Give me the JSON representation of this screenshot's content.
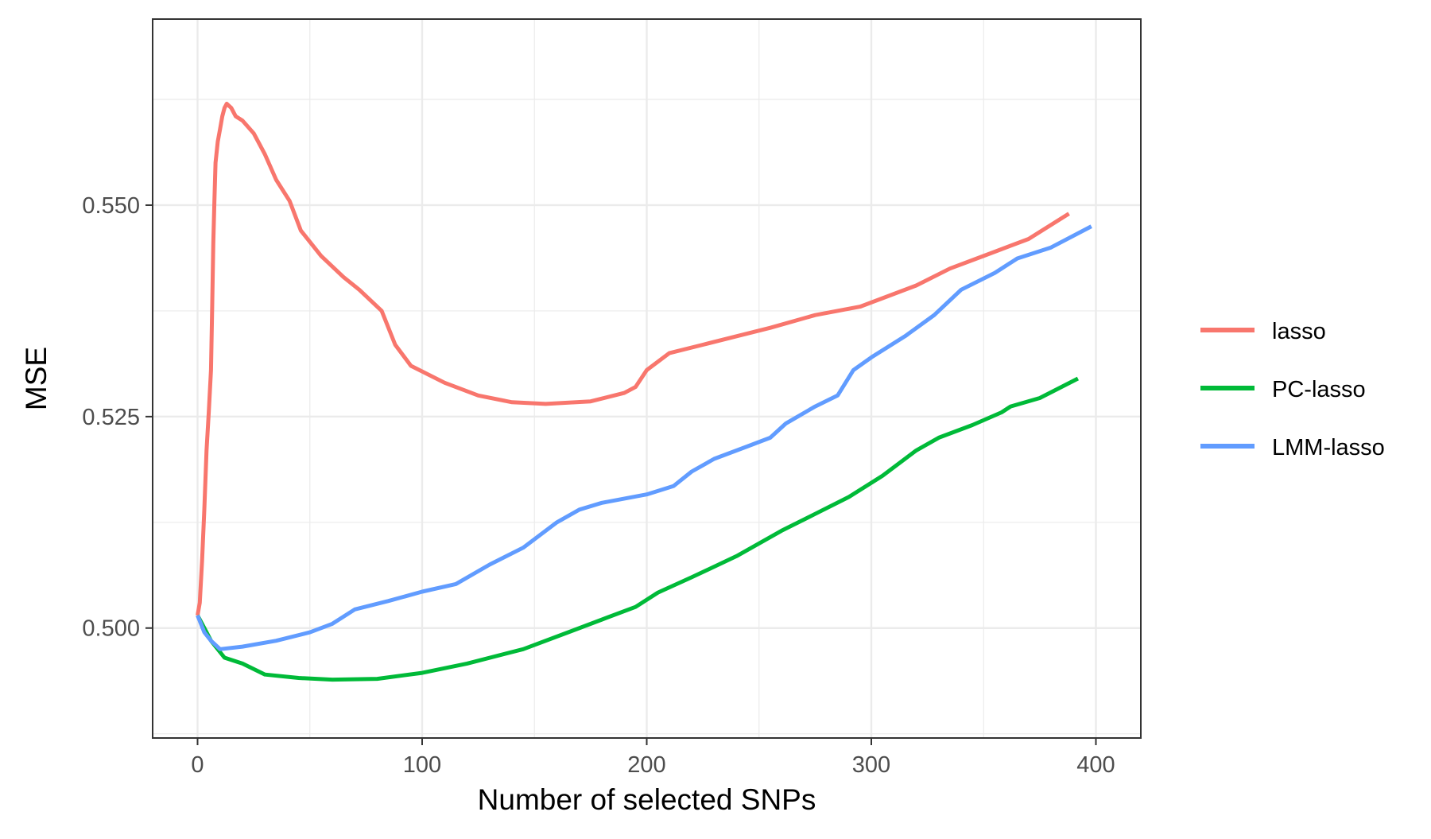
{
  "chart_data": {
    "type": "line",
    "title": "",
    "xlabel": "Number of selected SNPs",
    "ylabel": "MSE",
    "xlim": [
      -20,
      420
    ],
    "ylim": [
      0.487,
      0.572
    ],
    "x_ticks": [
      {
        "value": 0,
        "label": "0"
      },
      {
        "value": 100,
        "label": "100"
      },
      {
        "value": 200,
        "label": "200"
      },
      {
        "value": 300,
        "label": "300"
      },
      {
        "value": 400,
        "label": "400"
      }
    ],
    "y_ticks": [
      {
        "value": 0.5,
        "label": "0.500"
      },
      {
        "value": 0.525,
        "label": "0.525"
      },
      {
        "value": 0.55,
        "label": "0.550"
      }
    ],
    "grid": true,
    "legend_position": "right",
    "series": [
      {
        "name": "lasso",
        "color": "#F8766D",
        "points": [
          [
            0,
            0.5015
          ],
          [
            1,
            0.503
          ],
          [
            2,
            0.508
          ],
          [
            3,
            0.514
          ],
          [
            4,
            0.521
          ],
          [
            5,
            0.5255
          ],
          [
            6,
            0.5305
          ],
          [
            6.5,
            0.538
          ],
          [
            7,
            0.5455
          ],
          [
            7.5,
            0.5505
          ],
          [
            8,
            0.555
          ],
          [
            9,
            0.5575
          ],
          [
            10,
            0.559
          ],
          [
            11,
            0.5605
          ],
          [
            12,
            0.5615
          ],
          [
            13,
            0.562
          ],
          [
            15,
            0.5615
          ],
          [
            17,
            0.5605
          ],
          [
            20,
            0.56
          ],
          [
            25,
            0.5585
          ],
          [
            30,
            0.556
          ],
          [
            35,
            0.553
          ],
          [
            41,
            0.5505
          ],
          [
            46,
            0.547
          ],
          [
            55,
            0.544
          ],
          [
            65,
            0.5415
          ],
          [
            72,
            0.54
          ],
          [
            82,
            0.5375
          ],
          [
            88,
            0.5335
          ],
          [
            95,
            0.531
          ],
          [
            110,
            0.529
          ],
          [
            125,
            0.5275
          ],
          [
            140,
            0.5267
          ],
          [
            155,
            0.5265
          ],
          [
            175,
            0.5268
          ],
          [
            190,
            0.5278
          ],
          [
            195,
            0.5285
          ],
          [
            200,
            0.5305
          ],
          [
            210,
            0.5325
          ],
          [
            225,
            0.5335
          ],
          [
            240,
            0.5345
          ],
          [
            255,
            0.5355
          ],
          [
            275,
            0.537
          ],
          [
            295,
            0.538
          ],
          [
            305,
            0.539
          ],
          [
            320,
            0.5405
          ],
          [
            335,
            0.5425
          ],
          [
            345,
            0.5435
          ],
          [
            355,
            0.5445
          ],
          [
            370,
            0.546
          ],
          [
            388,
            0.549
          ]
        ]
      },
      {
        "name": "PC-lasso",
        "color": "#00BA38",
        "points": [
          [
            0,
            0.5015
          ],
          [
            3,
            0.5
          ],
          [
            6,
            0.4985
          ],
          [
            12,
            0.4965
          ],
          [
            20,
            0.4958
          ],
          [
            30,
            0.4945
          ],
          [
            45,
            0.4941
          ],
          [
            60,
            0.4939
          ],
          [
            80,
            0.494
          ],
          [
            100,
            0.4947
          ],
          [
            120,
            0.4958
          ],
          [
            145,
            0.4975
          ],
          [
            165,
            0.4995
          ],
          [
            180,
            0.501
          ],
          [
            195,
            0.5025
          ],
          [
            205,
            0.5042
          ],
          [
            220,
            0.506
          ],
          [
            240,
            0.5085
          ],
          [
            260,
            0.5115
          ],
          [
            275,
            0.5135
          ],
          [
            290,
            0.5155
          ],
          [
            305,
            0.518
          ],
          [
            320,
            0.521
          ],
          [
            330,
            0.5225
          ],
          [
            345,
            0.524
          ],
          [
            358,
            0.5255
          ],
          [
            362,
            0.5262
          ],
          [
            375,
            0.5272
          ],
          [
            392,
            0.5295
          ]
        ]
      },
      {
        "name": "LMM-lasso",
        "color": "#619CFF",
        "points": [
          [
            0,
            0.5015
          ],
          [
            3,
            0.4995
          ],
          [
            6,
            0.4985
          ],
          [
            10,
            0.4975
          ],
          [
            20,
            0.4978
          ],
          [
            35,
            0.4985
          ],
          [
            50,
            0.4995
          ],
          [
            60,
            0.5005
          ],
          [
            70,
            0.5022
          ],
          [
            85,
            0.5032
          ],
          [
            100,
            0.5043
          ],
          [
            115,
            0.5052
          ],
          [
            130,
            0.5075
          ],
          [
            145,
            0.5095
          ],
          [
            160,
            0.5125
          ],
          [
            170,
            0.514
          ],
          [
            180,
            0.5148
          ],
          [
            200,
            0.5158
          ],
          [
            212,
            0.5168
          ],
          [
            220,
            0.5185
          ],
          [
            230,
            0.52
          ],
          [
            245,
            0.5215
          ],
          [
            255,
            0.5225
          ],
          [
            262,
            0.5242
          ],
          [
            275,
            0.5262
          ],
          [
            285,
            0.5275
          ],
          [
            292,
            0.5305
          ],
          [
            300,
            0.532
          ],
          [
            315,
            0.5345
          ],
          [
            328,
            0.537
          ],
          [
            340,
            0.54
          ],
          [
            355,
            0.542
          ],
          [
            365,
            0.5437
          ],
          [
            380,
            0.545
          ],
          [
            398,
            0.5475
          ]
        ]
      }
    ]
  }
}
